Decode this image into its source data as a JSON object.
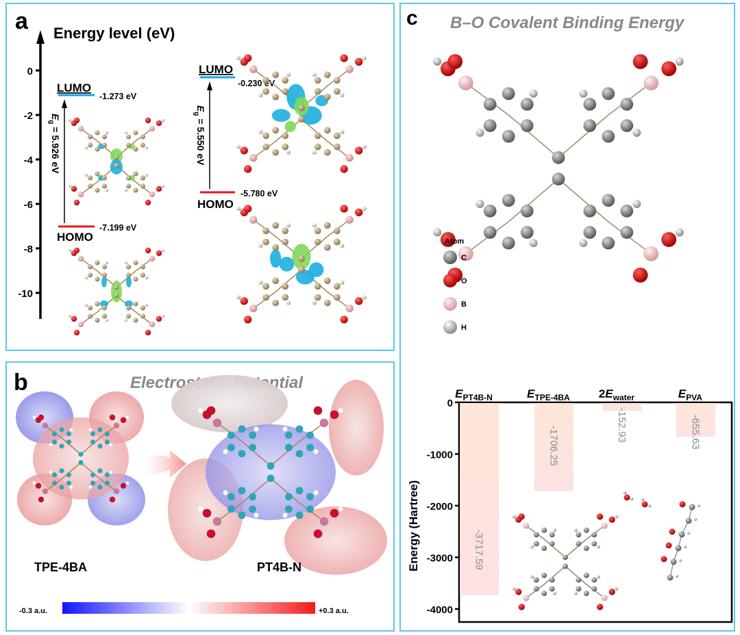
{
  "panel_a": {
    "label": "a",
    "axis_title": "Energy level (eV)",
    "ticks": [
      "0",
      "-2",
      "-4",
      "-6",
      "-8",
      "-10"
    ],
    "tpe4ba": {
      "lumo_label": "LUMO",
      "lumo_value": "-1.273 eV",
      "homo_label": "HOMO",
      "homo_value": "-7.199 eV",
      "gap_symbol": "E",
      "gap_sub": "g",
      "gap_text": " = 5.926 eV"
    },
    "pt4bn": {
      "lumo_label": "LUMO",
      "lumo_value": "-0.230 eV",
      "homo_label": "HOMO",
      "homo_value": "-5.780 eV",
      "gap_symbol": "E",
      "gap_sub": "g",
      "gap_text": " = 5.550 eV"
    },
    "colors": {
      "lumo": "#1aa3e8",
      "homo": "#e8141c",
      "orbital_pos": "#1eaee0",
      "orbital_neg": "#7ed957"
    }
  },
  "panel_b": {
    "label": "b",
    "title": "Electrostatic Potential",
    "molecule_left": "TPE-4BA",
    "molecule_right": "PT4B-N",
    "scale_min": "-0.3 a.u.",
    "scale_max": "+0.3 a.u.",
    "colors": {
      "negative": "#1414ff",
      "neutral": "#ffffff",
      "positive": "#f01c1c"
    }
  },
  "panel_c": {
    "label": "c",
    "title": "B–O Covalent Binding Energy",
    "legend_title": "Atom",
    "legend": [
      {
        "symbol": "C",
        "color": "#7a7a7a"
      },
      {
        "symbol": "O",
        "color": "#e00000"
      },
      {
        "symbol": "B",
        "color": "#f2b5b5"
      },
      {
        "symbol": "H",
        "color": "#d8d8d8"
      }
    ]
  },
  "chart_data": {
    "type": "bar",
    "title": "",
    "categories": [
      {
        "prefix": "",
        "symbol": "E",
        "sub": "PT4B-N"
      },
      {
        "prefix": "",
        "symbol": "E",
        "sub": "TPE-4BA"
      },
      {
        "prefix": "2",
        "symbol": "E",
        "sub": "water"
      },
      {
        "prefix": "",
        "symbol": "E",
        "sub": "PVA"
      }
    ],
    "values": [
      -3717.59,
      -1706.25,
      -152.93,
      -655.63
    ],
    "value_labels": [
      "-3717.59",
      "-1706.25",
      "-152.93",
      "-655.63"
    ],
    "xlabel": "",
    "ylabel": "Energy (Hartree)",
    "ylim": [
      -4250,
      0
    ],
    "yticks": [
      0,
      -1000,
      -2000,
      -3000,
      -4000
    ],
    "ytick_labels": [
      "0",
      "-1000",
      "-2000",
      "-3000",
      "-4000"
    ],
    "grid": false,
    "bar_color_top": "#fde6d6",
    "bar_color_bottom": "#fde2e4",
    "label_color": "#8a8a8a"
  }
}
